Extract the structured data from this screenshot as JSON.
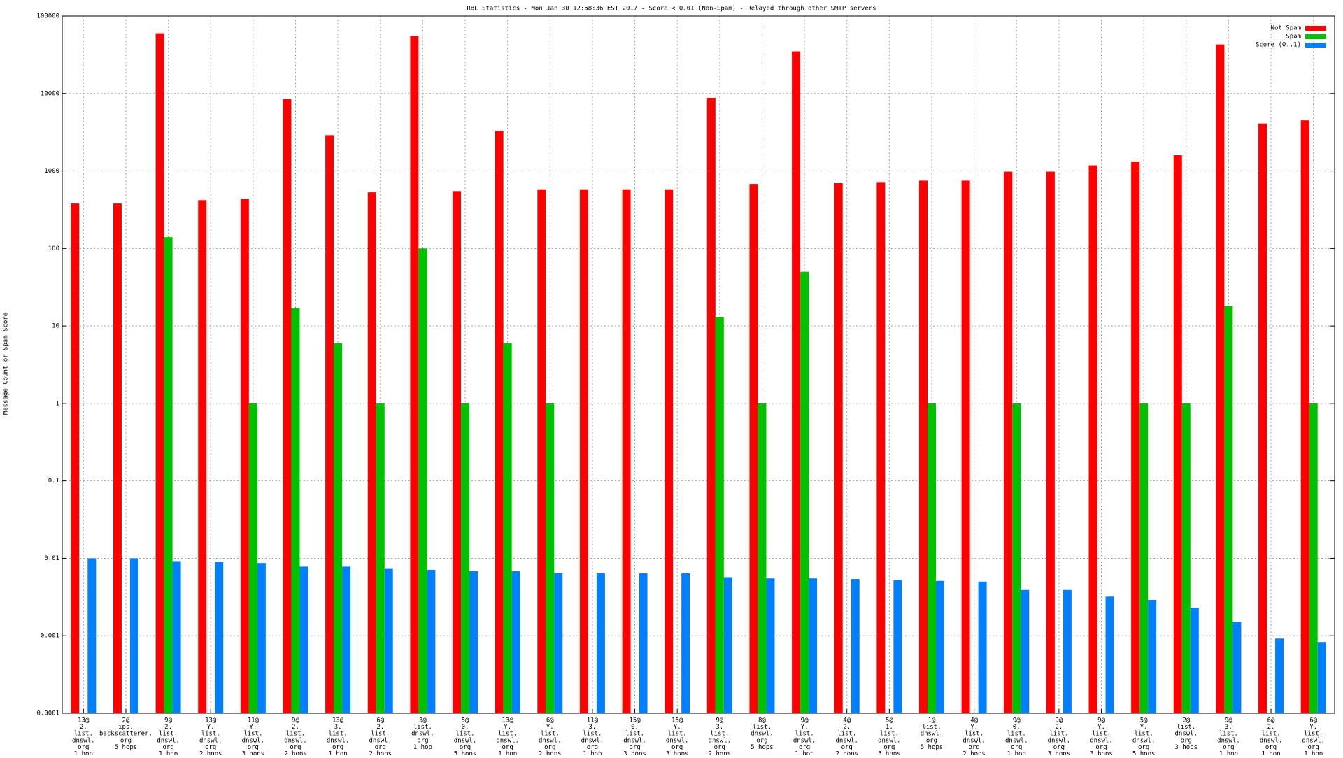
{
  "chart_data": {
    "type": "bar",
    "log_scale": true,
    "grid": true,
    "legend": "top-right",
    "title": "RBL Statistics - Mon Jan 30 12:58:36 EST 2017 - Score < 0.01 (Non-Spam) - Relayed through other SMTP servers",
    "y_label": "Message Count or Spam Score",
    "ylim": [
      0.0001,
      100000
    ],
    "yticks": [
      0.0001,
      0.001,
      0.01,
      0.1,
      1,
      10,
      100,
      1000,
      10000,
      100000
    ],
    "categories": [
      [
        "13@",
        "2.",
        "list.",
        "dnswl.",
        "org",
        "1 hop"
      ],
      [
        "2@",
        "ips.",
        "backscatterer.",
        "org",
        "5 hops"
      ],
      [
        "9@",
        "2.",
        "list.",
        "dnswl.",
        "org",
        "1 hop"
      ],
      [
        "13@",
        "Y.",
        "list.",
        "dnswl.",
        "org",
        "2 hops"
      ],
      [
        "11@",
        "Y.",
        "list.",
        "dnswl.",
        "org",
        "3 hops"
      ],
      [
        "9@",
        "2.",
        "list.",
        "dnswl.",
        "org",
        "2 hops"
      ],
      [
        "13@",
        "3.",
        "list.",
        "dnswl.",
        "org",
        "1 hop"
      ],
      [
        "6@",
        "2.",
        "list.",
        "dnswl.",
        "org",
        "2 hops"
      ],
      [
        "3@",
        "list.",
        "dnswl.",
        "org",
        "1 hop"
      ],
      [
        "5@",
        "0.",
        "list.",
        "dnswl.",
        "org",
        "5 hops"
      ],
      [
        "13@",
        "Y.",
        "list.",
        "dnswl.",
        "org",
        "1 hop"
      ],
      [
        "6@",
        "Y.",
        "list.",
        "dnswl.",
        "org",
        "2 hops"
      ],
      [
        "11@",
        "3.",
        "list.",
        "dnswl.",
        "org",
        "1 hop"
      ],
      [
        "15@",
        "0.",
        "list.",
        "dnswl.",
        "org",
        "3 hops"
      ],
      [
        "15@",
        "Y.",
        "list.",
        "dnswl.",
        "org",
        "3 hops"
      ],
      [
        "9@",
        "3.",
        "list.",
        "dnswl.",
        "org",
        "2 hops"
      ],
      [
        "8@",
        "list.",
        "dnswl.",
        "org",
        "5 hops"
      ],
      [
        "9@",
        "Y.",
        "list.",
        "dnswl.",
        "org",
        "1 hop"
      ],
      [
        "4@",
        "2.",
        "list.",
        "dnswl.",
        "org",
        "2 hops"
      ],
      [
        "5@",
        "1.",
        "list.",
        "dnswl.",
        "org",
        "5 hops"
      ],
      [
        "1@",
        "list.",
        "dnswl.",
        "org",
        "5 hops"
      ],
      [
        "4@",
        "Y.",
        "list.",
        "dnswl.",
        "org",
        "2 hops"
      ],
      [
        "9@",
        "0.",
        "list.",
        "dnswl.",
        "org",
        "1 hop"
      ],
      [
        "9@",
        "2.",
        "list.",
        "dnswl.",
        "org",
        "3 hops"
      ],
      [
        "9@",
        "Y.",
        "list.",
        "dnswl.",
        "org",
        "3 hops"
      ],
      [
        "5@",
        "Y.",
        "list.",
        "dnswl.",
        "org",
        "5 hops"
      ],
      [
        "2@",
        "list.",
        "dnswl.",
        "org",
        "3 hops"
      ],
      [
        "9@",
        "3.",
        "list.",
        "dnswl.",
        "org",
        "1 hop"
      ],
      [
        "6@",
        "2.",
        "list.",
        "dnswl.",
        "org",
        "1 hop"
      ],
      [
        "6@",
        "Y.",
        "list.",
        "dnswl.",
        "org",
        "1 hop"
      ]
    ],
    "series": [
      {
        "name": "Not Spam",
        "color": "#ff0000",
        "values": [
          380,
          380,
          60000,
          420,
          440,
          8500,
          2900,
          530,
          55000,
          550,
          3300,
          580,
          580,
          580,
          580,
          8800,
          680,
          35000,
          700,
          720,
          750,
          750,
          980,
          980,
          1180,
          1320,
          1600,
          43000,
          4100,
          4500
        ]
      },
      {
        "name": "Spam",
        "color": "#00c000",
        "values": [
          null,
          null,
          140,
          null,
          1,
          17,
          6,
          1,
          100,
          1,
          6,
          1,
          null,
          null,
          null,
          13,
          1,
          50,
          null,
          null,
          1,
          null,
          1,
          null,
          null,
          1,
          1,
          18,
          null,
          1
        ]
      },
      {
        "name": "Score (0..1)",
        "color": "#0080ff",
        "values": [
          0.01,
          0.01,
          0.0092,
          0.009,
          0.0087,
          0.0078,
          0.0078,
          0.0073,
          0.0071,
          0.0068,
          0.0068,
          0.0064,
          0.0064,
          0.0064,
          0.0064,
          0.0057,
          0.0055,
          0.0055,
          0.0054,
          0.0052,
          0.0051,
          0.005,
          0.0039,
          0.0039,
          0.0032,
          0.0029,
          0.0023,
          0.0015,
          0.00092,
          0.00083
        ]
      }
    ]
  }
}
